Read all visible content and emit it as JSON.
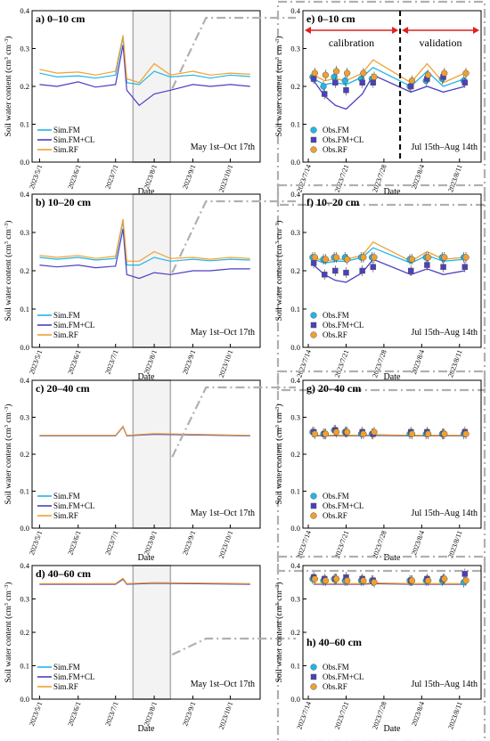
{
  "figure": {
    "ylabel": "Soil water content (cm3 cm-3)",
    "xlabel": "Date"
  },
  "colors": {
    "fm": "#1fb6e8",
    "fmcl": "#4a3fc0",
    "rf": "#f0a030",
    "highlight_fill": "#f3f3f3",
    "highlight_edge": "#b0b0b0",
    "dash": "#b0b0b0",
    "marker_edge": "#555555"
  },
  "left_axis": {
    "ticks": [
      "2023/5/1",
      "2023/6/1",
      "2023/7/1",
      "2023/8/1",
      "2023/9/1",
      "2023/10/1"
    ],
    "period_text": "May 1st–Oct 17th",
    "legend": [
      "Sim.FM",
      "Sim.FM+CL",
      "Sim.RF"
    ]
  },
  "right_axis": {
    "ticks": [
      "2023/7/14",
      "2023/7/21",
      "2023/7/28",
      "2023/8/4",
      "2023/8/11"
    ],
    "period_text": "Jul 15th–Aug 14th",
    "legend": [
      "Obs.FM",
      "Obs.FM+CL",
      "Obs.RF"
    ],
    "calibration_label": "calibration",
    "validation_label": "validation"
  },
  "yticks": [
    "0.0",
    "0.1",
    "0.2",
    "0.3",
    "0.4"
  ],
  "chart_data": [
    {
      "panel": "a",
      "title": "a) 0–10 cm",
      "type": "line",
      "xlabel": "Date",
      "ylabel": "Soil water content (cm3 cm-3)",
      "ylim": [
        0,
        0.4
      ],
      "x": [
        "2023/5/1",
        "2023/5/15",
        "2023/6/1",
        "2023/6/15",
        "2023/7/1",
        "2023/7/7",
        "2023/7/10",
        "2023/7/20",
        "2023/8/1",
        "2023/8/14",
        "2023/9/1",
        "2023/9/15",
        "2023/10/1",
        "2023/10/17"
      ],
      "series": [
        {
          "name": "Sim.FM",
          "values": [
            0.235,
            0.225,
            0.228,
            0.222,
            0.23,
            0.33,
            0.21,
            0.205,
            0.24,
            0.225,
            0.23,
            0.222,
            0.23,
            0.226
          ]
        },
        {
          "name": "Sim.FM+CL",
          "values": [
            0.205,
            0.2,
            0.212,
            0.198,
            0.205,
            0.31,
            0.19,
            0.15,
            0.18,
            0.19,
            0.205,
            0.2,
            0.205,
            0.2
          ]
        },
        {
          "name": "Sim.RF",
          "values": [
            0.245,
            0.235,
            0.238,
            0.23,
            0.24,
            0.335,
            0.22,
            0.21,
            0.26,
            0.23,
            0.24,
            0.23,
            0.235,
            0.232
          ]
        }
      ]
    },
    {
      "panel": "b",
      "title": "b) 10–20 cm",
      "type": "line",
      "xlabel": "Date",
      "ylabel": "Soil water content (cm3 cm-3)",
      "ylim": [
        0,
        0.4
      ],
      "x": [
        "2023/5/1",
        "2023/5/15",
        "2023/6/1",
        "2023/6/15",
        "2023/7/1",
        "2023/7/7",
        "2023/7/10",
        "2023/7/20",
        "2023/8/1",
        "2023/8/14",
        "2023/9/1",
        "2023/9/15",
        "2023/10/1",
        "2023/10/17"
      ],
      "series": [
        {
          "name": "Sim.FM",
          "values": [
            0.235,
            0.23,
            0.235,
            0.228,
            0.232,
            0.33,
            0.215,
            0.215,
            0.235,
            0.225,
            0.23,
            0.226,
            0.23,
            0.228
          ]
        },
        {
          "name": "Sim.FM+CL",
          "values": [
            0.215,
            0.21,
            0.215,
            0.208,
            0.212,
            0.31,
            0.19,
            0.18,
            0.195,
            0.19,
            0.2,
            0.2,
            0.205,
            0.205
          ]
        },
        {
          "name": "Sim.RF",
          "values": [
            0.24,
            0.235,
            0.24,
            0.232,
            0.238,
            0.335,
            0.225,
            0.225,
            0.25,
            0.232,
            0.235,
            0.23,
            0.235,
            0.232
          ]
        }
      ]
    },
    {
      "panel": "c",
      "title": "c) 20–40 cm",
      "type": "line",
      "xlabel": "Date",
      "ylabel": "Soil water content (cm3 cm-3)",
      "ylim": [
        0,
        0.4
      ],
      "x": [
        "2023/5/1",
        "2023/7/1",
        "2023/7/7",
        "2023/7/10",
        "2023/8/1",
        "2023/10/17"
      ],
      "series": [
        {
          "name": "Sim.FM",
          "values": [
            0.25,
            0.25,
            0.275,
            0.25,
            0.255,
            0.25
          ]
        },
        {
          "name": "Sim.FM+CL",
          "values": [
            0.25,
            0.25,
            0.274,
            0.25,
            0.254,
            0.25
          ]
        },
        {
          "name": "Sim.RF",
          "values": [
            0.251,
            0.251,
            0.276,
            0.251,
            0.256,
            0.251
          ]
        }
      ]
    },
    {
      "panel": "d",
      "title": "d) 40–60 cm",
      "type": "line",
      "xlabel": "Date",
      "ylabel": "Soil water content (cm3 cm-3)",
      "ylim": [
        0,
        0.4
      ],
      "x": [
        "2023/5/1",
        "2023/7/1",
        "2023/7/7",
        "2023/7/10",
        "2023/8/1",
        "2023/10/17"
      ],
      "series": [
        {
          "name": "Sim.FM",
          "values": [
            0.345,
            0.345,
            0.36,
            0.345,
            0.348,
            0.345
          ]
        },
        {
          "name": "Sim.FM+CL",
          "values": [
            0.344,
            0.344,
            0.359,
            0.344,
            0.347,
            0.344
          ]
        },
        {
          "name": "Sim.RF",
          "values": [
            0.346,
            0.346,
            0.362,
            0.346,
            0.349,
            0.346
          ]
        }
      ]
    },
    {
      "panel": "e",
      "title": "e) 0–10 cm",
      "type": "scatter",
      "xlabel": "Date",
      "ylabel": "Soil water content (cm3 cm-3)",
      "ylim": [
        0,
        0.4
      ],
      "x": [
        "2023/7/15",
        "2023/7/17",
        "2023/7/19",
        "2023/7/21",
        "2023/7/24",
        "2023/7/26",
        "2023/8/2",
        "2023/8/5",
        "2023/8/8",
        "2023/8/12"
      ],
      "series": [
        {
          "name": "Obs.FM",
          "values": [
            0.225,
            0.2,
            0.225,
            0.215,
            0.22,
            0.22,
            0.2,
            0.215,
            0.22,
            0.215
          ]
        },
        {
          "name": "Obs.FM+CL",
          "values": [
            0.22,
            0.18,
            0.21,
            0.19,
            0.21,
            0.21,
            0.2,
            0.22,
            0.225,
            0.21
          ]
        },
        {
          "name": "Obs.RF",
          "values": [
            0.235,
            0.23,
            0.24,
            0.235,
            0.235,
            0.225,
            0.215,
            0.23,
            0.235,
            0.235
          ]
        },
        {
          "name": "Sim.FM",
          "values": [
            0.22,
            0.205,
            0.21,
            0.205,
            0.225,
            0.25,
            0.2,
            0.24,
            0.2,
            0.22
          ]
        },
        {
          "name": "Sim.FM+CL",
          "values": [
            0.215,
            0.175,
            0.15,
            0.14,
            0.18,
            0.23,
            0.185,
            0.2,
            0.185,
            0.2
          ]
        },
        {
          "name": "Sim.RF",
          "values": [
            0.23,
            0.215,
            0.22,
            0.215,
            0.235,
            0.27,
            0.21,
            0.26,
            0.21,
            0.235
          ]
        }
      ]
    },
    {
      "panel": "f",
      "title": "f) 10–20 cm",
      "type": "scatter",
      "xlabel": "Date",
      "ylabel": "Soil water content (cm3 cm-3)",
      "ylim": [
        0,
        0.4
      ],
      "x": [
        "2023/7/15",
        "2023/7/17",
        "2023/7/19",
        "2023/7/21",
        "2023/7/24",
        "2023/7/26",
        "2023/8/2",
        "2023/8/5",
        "2023/8/8",
        "2023/8/12"
      ],
      "series": [
        {
          "name": "Obs.FM",
          "values": [
            0.235,
            0.23,
            0.235,
            0.235,
            0.235,
            0.235,
            0.23,
            0.235,
            0.235,
            0.235
          ]
        },
        {
          "name": "Obs.FM+CL",
          "values": [
            0.22,
            0.19,
            0.2,
            0.195,
            0.2,
            0.21,
            0.2,
            0.215,
            0.21,
            0.21
          ]
        },
        {
          "name": "Obs.RF",
          "values": [
            0.235,
            0.23,
            0.235,
            0.23,
            0.235,
            0.235,
            0.23,
            0.235,
            0.235,
            0.235
          ]
        },
        {
          "name": "Sim.FM",
          "values": [
            0.23,
            0.22,
            0.225,
            0.225,
            0.235,
            0.26,
            0.22,
            0.24,
            0.225,
            0.23
          ]
        },
        {
          "name": "Sim.FM+CL",
          "values": [
            0.215,
            0.19,
            0.175,
            0.17,
            0.195,
            0.23,
            0.19,
            0.205,
            0.19,
            0.2
          ]
        },
        {
          "name": "Sim.RF",
          "values": [
            0.235,
            0.225,
            0.23,
            0.23,
            0.24,
            0.275,
            0.225,
            0.25,
            0.23,
            0.235
          ]
        }
      ]
    },
    {
      "panel": "g",
      "title": "g) 20–40 cm",
      "type": "scatter",
      "xlabel": "Date",
      "ylabel": "Soil water content (cm3 cm-3)",
      "ylim": [
        0,
        0.4
      ],
      "x": [
        "2023/7/15",
        "2023/7/17",
        "2023/7/19",
        "2023/7/21",
        "2023/7/24",
        "2023/7/26",
        "2023/8/2",
        "2023/8/5",
        "2023/8/8",
        "2023/8/12"
      ],
      "series": [
        {
          "name": "Obs.FM",
          "values": [
            0.26,
            0.255,
            0.265,
            0.26,
            0.255,
            0.255,
            0.255,
            0.255,
            0.255,
            0.255
          ]
        },
        {
          "name": "Obs.FM+CL",
          "values": [
            0.26,
            0.255,
            0.265,
            0.26,
            0.26,
            0.255,
            0.26,
            0.26,
            0.255,
            0.26
          ]
        },
        {
          "name": "Obs.RF",
          "values": [
            0.255,
            0.255,
            0.26,
            0.26,
            0.255,
            0.26,
            0.255,
            0.255,
            0.255,
            0.255
          ]
        },
        {
          "name": "Sim.FM",
          "values": [
            0.25,
            0.25,
            0.25,
            0.25,
            0.25,
            0.252,
            0.25,
            0.25,
            0.25,
            0.25
          ]
        },
        {
          "name": "Sim.FM+CL",
          "values": [
            0.25,
            0.25,
            0.25,
            0.25,
            0.25,
            0.251,
            0.25,
            0.25,
            0.25,
            0.25
          ]
        },
        {
          "name": "Sim.RF",
          "values": [
            0.251,
            0.251,
            0.251,
            0.251,
            0.251,
            0.253,
            0.251,
            0.251,
            0.251,
            0.251
          ]
        }
      ]
    },
    {
      "panel": "h",
      "title": "h) 40–60 cm",
      "type": "scatter",
      "xlabel": "Date",
      "ylabel": "Soil water content (cm3 cm-3)",
      "ylim": [
        0,
        0.4
      ],
      "x": [
        "2023/7/15",
        "2023/7/17",
        "2023/7/19",
        "2023/7/21",
        "2023/7/24",
        "2023/7/26",
        "2023/8/2",
        "2023/8/5",
        "2023/8/8",
        "2023/8/12"
      ],
      "series": [
        {
          "name": "Obs.FM",
          "values": [
            0.36,
            0.355,
            0.36,
            0.355,
            0.355,
            0.355,
            0.355,
            0.355,
            0.355,
            0.35
          ]
        },
        {
          "name": "Obs.FM+CL",
          "values": [
            0.365,
            0.36,
            0.36,
            0.365,
            0.36,
            0.355,
            0.355,
            0.36,
            0.36,
            0.375
          ]
        },
        {
          "name": "Obs.RF",
          "values": [
            0.36,
            0.355,
            0.36,
            0.355,
            0.355,
            0.35,
            0.355,
            0.355,
            0.36,
            0.355
          ]
        },
        {
          "name": "Sim.FM",
          "values": [
            0.345,
            0.345,
            0.345,
            0.345,
            0.345,
            0.347,
            0.345,
            0.345,
            0.345,
            0.345
          ]
        },
        {
          "name": "Sim.FM+CL",
          "values": [
            0.344,
            0.344,
            0.344,
            0.344,
            0.344,
            0.346,
            0.344,
            0.344,
            0.344,
            0.344
          ]
        },
        {
          "name": "Sim.RF",
          "values": [
            0.346,
            0.346,
            0.346,
            0.346,
            0.346,
            0.348,
            0.346,
            0.346,
            0.346,
            0.346
          ]
        }
      ]
    }
  ]
}
